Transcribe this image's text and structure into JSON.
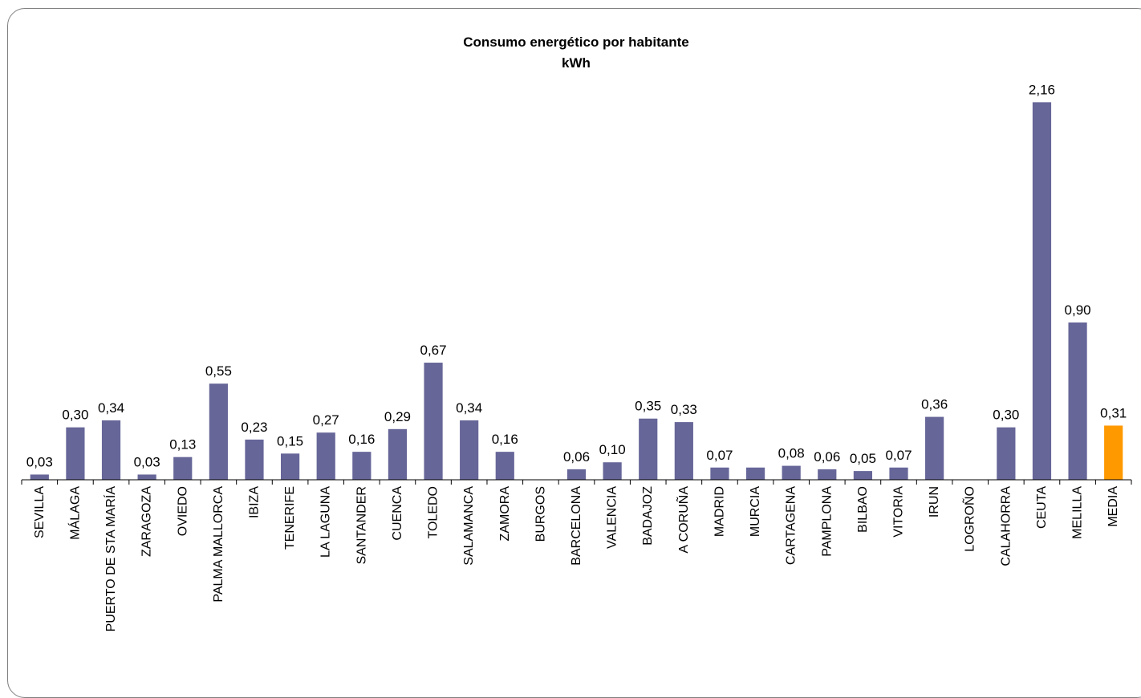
{
  "chart_data": {
    "type": "bar",
    "title": "Consumo energético por habitante",
    "subtitle": "kWh",
    "xlabel": "",
    "ylabel": "",
    "ylim": [
      0,
      2.35
    ],
    "grid": false,
    "legend": "none",
    "colors": {
      "bar": "#666699",
      "highlight": "#ff9900",
      "axis": "#000000"
    },
    "highlight_category": "MEDIA",
    "categories": [
      "SEVILLA",
      "MÁLAGA",
      "PUERTO DE STA MARÍA",
      "ZARAGOZA",
      "OVIEDO",
      "PALMA MALLORCA",
      "IBIZA",
      "TENERIFE",
      "LA LAGUNA",
      "SANTANDER",
      "CUENCA",
      "TOLEDO",
      "SALAMANCA",
      "ZAMORA",
      "BURGOS",
      "BARCELONA",
      "VALENCIA",
      "BADAJOZ",
      "A CORUÑA",
      "MADRID",
      "MURCIA",
      "CARTAGENA",
      "PAMPLONA",
      "BILBAO",
      "VITORIA",
      "IRUN",
      "LOGROÑO",
      "CALAHORRA",
      "CEUTA",
      "MELILLA",
      "MEDIA"
    ],
    "values": [
      0.03,
      0.3,
      0.34,
      0.03,
      0.13,
      0.55,
      0.23,
      0.15,
      0.27,
      0.16,
      0.29,
      0.67,
      0.34,
      0.16,
      null,
      0.06,
      0.1,
      0.35,
      0.33,
      0.07,
      0.07,
      0.08,
      0.06,
      0.05,
      0.07,
      0.36,
      null,
      0.3,
      2.16,
      0.9,
      0.31
    ],
    "value_labels": [
      "0,03",
      "0,30",
      "0,34",
      "0,03",
      "0,13",
      "0,55",
      "0,23",
      "0,15",
      "0,27",
      "0,16",
      "0,29",
      "0,67",
      "0,34",
      "0,16",
      "",
      "0,06",
      "0,10",
      "0,35",
      "0,33",
      "0,07",
      "",
      "0,08",
      "0,06",
      "0,05",
      "0,07",
      "0,36",
      "",
      "0,30",
      "2,16",
      "0,90",
      "0,31"
    ]
  }
}
